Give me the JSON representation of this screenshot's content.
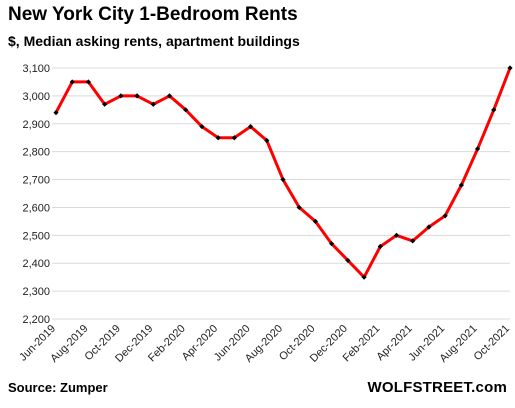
{
  "chart_data": {
    "type": "line",
    "title": "New York City 1-Bedroom Rents",
    "subtitle": "$, Median asking rents, apartment buildings",
    "xlabel": "",
    "ylabel": "",
    "ylim": [
      2200,
      3100
    ],
    "yticks": [
      2200,
      2300,
      2400,
      2500,
      2600,
      2700,
      2800,
      2900,
      3000,
      3100
    ],
    "ytick_labels": [
      "2,200",
      "2,300",
      "2,400",
      "2,500",
      "2,600",
      "2,700",
      "2,800",
      "2,900",
      "3,000",
      "3,100"
    ],
    "grid": true,
    "line_color": "#ff0000",
    "marker_color": "#000000",
    "x": [
      "Jun-2019",
      "Jul-2019",
      "Aug-2019",
      "Sep-2019",
      "Oct-2019",
      "Nov-2019",
      "Dec-2019",
      "Jan-2020",
      "Feb-2020",
      "Mar-2020",
      "Apr-2020",
      "May-2020",
      "Jun-2020",
      "Jul-2020",
      "Aug-2020",
      "Sep-2020",
      "Oct-2020",
      "Nov-2020",
      "Dec-2020",
      "Jan-2021",
      "Feb-2021",
      "Mar-2021",
      "Apr-2021",
      "May-2021",
      "Jun-2021",
      "Jul-2021",
      "Aug-2021",
      "Sep-2021",
      "Oct-2021"
    ],
    "x_tick_labels": [
      "Jun-2019",
      "Aug-2019",
      "Oct-2019",
      "Dec-2019",
      "Feb-2020",
      "Apr-2020",
      "Jun-2020",
      "Aug-2020",
      "Oct-2020",
      "Dec-2020",
      "Feb-2021",
      "Apr-2021",
      "Jun-2021",
      "Aug-2021",
      "Oct-2021"
    ],
    "values": [
      2940,
      3050,
      3050,
      2970,
      3000,
      3000,
      2970,
      3000,
      2950,
      2890,
      2850,
      2850,
      2890,
      2840,
      2700,
      2600,
      2550,
      2470,
      2410,
      2350,
      2460,
      2500,
      2480,
      2530,
      2570,
      2680,
      2810,
      2950,
      3100
    ]
  },
  "footer": {
    "source": "Source: Zumper",
    "brand": "WOLFSTREET.com"
  }
}
